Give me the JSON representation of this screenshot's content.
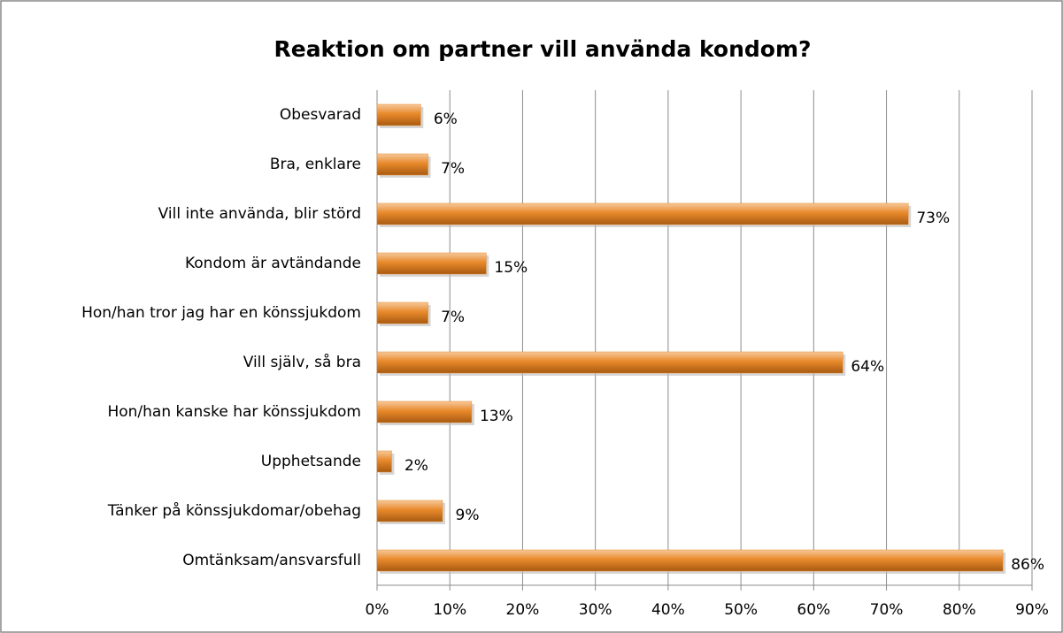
{
  "chart_data": {
    "type": "barh",
    "title": "Reaktion om partner vill använda kondom?",
    "categories": [
      "Obesvarad",
      "Bra, enklare",
      "Vill inte använda, blir störd",
      "Kondom är avtändande",
      "Hon/han tror jag har en könssjukdom",
      "Vill själv, så bra",
      "Hon/han kanske har könssjukdom",
      "Upphetsande",
      "Tänker på könssjukdomar/obehag",
      "Omtänksam/ansvarsfull"
    ],
    "values": [
      6,
      7,
      73,
      15,
      7,
      64,
      13,
      2,
      9,
      86
    ],
    "value_labels": [
      "6%",
      "7%",
      "73%",
      "15%",
      "7%",
      "64%",
      "13%",
      "2%",
      "9%",
      "86%"
    ],
    "color": "#e8892a",
    "xlim": [
      0,
      90
    ],
    "xticks": [
      {
        "value": 0,
        "label": "0%"
      },
      {
        "value": 10,
        "label": "10%"
      },
      {
        "value": 20,
        "label": "20%"
      },
      {
        "value": 30,
        "label": "30%"
      },
      {
        "value": 40,
        "label": "40%"
      },
      {
        "value": 50,
        "label": "50%"
      },
      {
        "value": 60,
        "label": "60%"
      },
      {
        "value": 70,
        "label": "70%"
      },
      {
        "value": 80,
        "label": "80%"
      },
      {
        "value": 90,
        "label": "90%"
      }
    ],
    "grid": true
  }
}
